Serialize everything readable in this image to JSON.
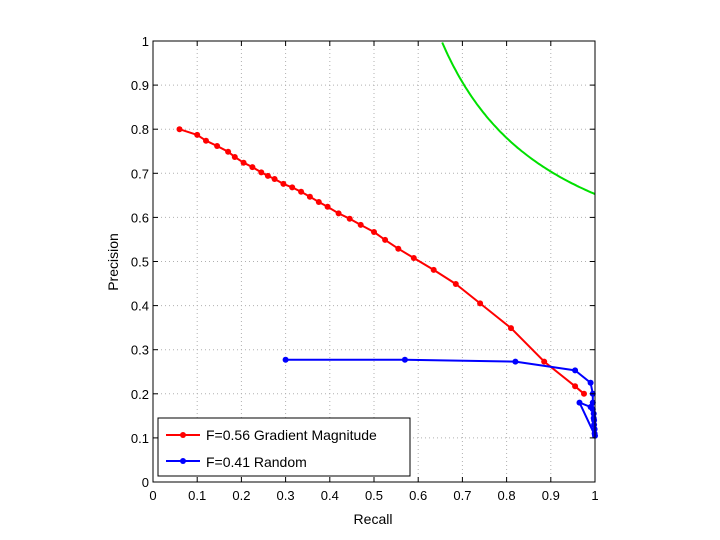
{
  "chart_data": {
    "type": "line",
    "xlabel": "Recall",
    "ylabel": "Precision",
    "xlim": [
      0,
      1
    ],
    "ylim": [
      0,
      1
    ],
    "xticks": [
      "0",
      "0.1",
      "0.2",
      "0.3",
      "0.4",
      "0.5",
      "0.6",
      "0.7",
      "0.8",
      "0.9",
      "1"
    ],
    "yticks": [
      "0",
      "0.1",
      "0.2",
      "0.3",
      "0.4",
      "0.5",
      "0.6",
      "0.7",
      "0.8",
      "0.9",
      "1"
    ],
    "grid": true,
    "legend_position": "bottom-left",
    "series": [
      {
        "name": "F=0.56 Gradient Magnitude",
        "color": "#ff0000",
        "marker": "dot",
        "x": [
          0.06,
          0.1,
          0.12,
          0.145,
          0.17,
          0.185,
          0.205,
          0.225,
          0.245,
          0.26,
          0.275,
          0.295,
          0.315,
          0.335,
          0.355,
          0.375,
          0.395,
          0.42,
          0.445,
          0.47,
          0.5,
          0.525,
          0.555,
          0.59,
          0.635,
          0.685,
          0.74,
          0.81,
          0.885,
          0.955,
          0.975
        ],
        "y": [
          0.8,
          0.787,
          0.774,
          0.762,
          0.749,
          0.737,
          0.724,
          0.714,
          0.702,
          0.694,
          0.687,
          0.676,
          0.668,
          0.658,
          0.647,
          0.635,
          0.624,
          0.609,
          0.597,
          0.583,
          0.567,
          0.549,
          0.529,
          0.508,
          0.481,
          0.449,
          0.405,
          0.349,
          0.273,
          0.217,
          0.2
        ]
      },
      {
        "name": "F=0.41 Random",
        "color": "#0000ff",
        "marker": "dot",
        "x": [
          0.3,
          0.57,
          0.82,
          0.955,
          0.99,
          0.995,
          0.995,
          0.995,
          0.997,
          0.997,
          0.998,
          0.998,
          0.999,
          0.999,
          1.0,
          0.965,
          0.99
        ],
        "y": [
          0.277,
          0.277,
          0.273,
          0.253,
          0.225,
          0.2,
          0.18,
          0.165,
          0.155,
          0.145,
          0.14,
          0.13,
          0.12,
          0.11,
          0.105,
          0.18,
          0.17
        ]
      },
      {
        "name": "",
        "color": "#00e000",
        "marker": "none",
        "iso_f": 0.79,
        "x_from": 0.65,
        "x_to": 1.0
      }
    ]
  }
}
